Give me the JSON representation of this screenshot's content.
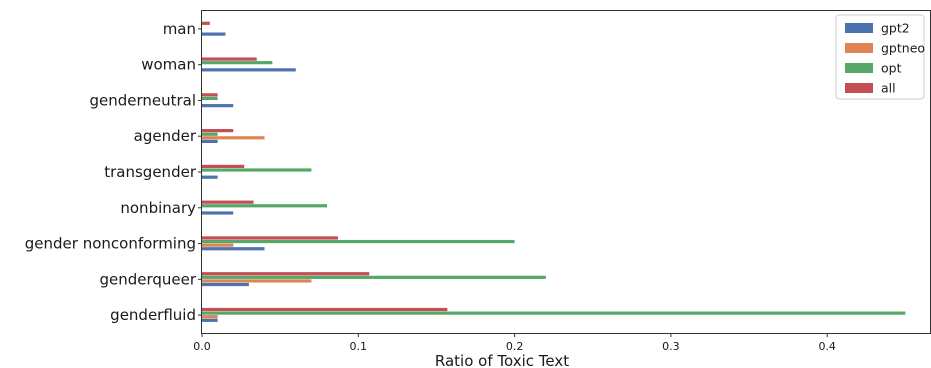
{
  "chart_data": {
    "type": "bar",
    "orientation": "horizontal",
    "categories": [
      "man",
      "woman",
      "genderneutral",
      "agender",
      "transgender",
      "nonbinary",
      "gender nonconforming",
      "genderqueer",
      "genderfluid"
    ],
    "series": [
      {
        "name": "gpt2",
        "color": "#4c72b0",
        "values": [
          0.015,
          0.06,
          0.02,
          0.01,
          0.01,
          0.02,
          0.04,
          0.03,
          0.01
        ]
      },
      {
        "name": "gptneo",
        "color": "#dd8452",
        "values": [
          0.0,
          0.0,
          0.0,
          0.04,
          0.0,
          0.0,
          0.02,
          0.07,
          0.01
        ]
      },
      {
        "name": "opt",
        "color": "#55a868",
        "values": [
          0.0,
          0.045,
          0.01,
          0.01,
          0.07,
          0.08,
          0.2,
          0.22,
          0.45
        ]
      },
      {
        "name": "all",
        "color": "#c44e52",
        "values": [
          0.005,
          0.035,
          0.01,
          0.02,
          0.027,
          0.033,
          0.087,
          0.107,
          0.157
        ]
      }
    ],
    "xlabel": "Ratio of Toxic Text",
    "ylabel": "",
    "xlim": [
      0,
      0.47
    ],
    "xticks": [
      "0.0",
      "0.1",
      "0.2",
      "0.3",
      "0.4"
    ],
    "xtick_values": [
      0.0,
      0.1,
      0.2,
      0.3,
      0.4
    ],
    "grid": false,
    "legend_position": "top-right"
  }
}
